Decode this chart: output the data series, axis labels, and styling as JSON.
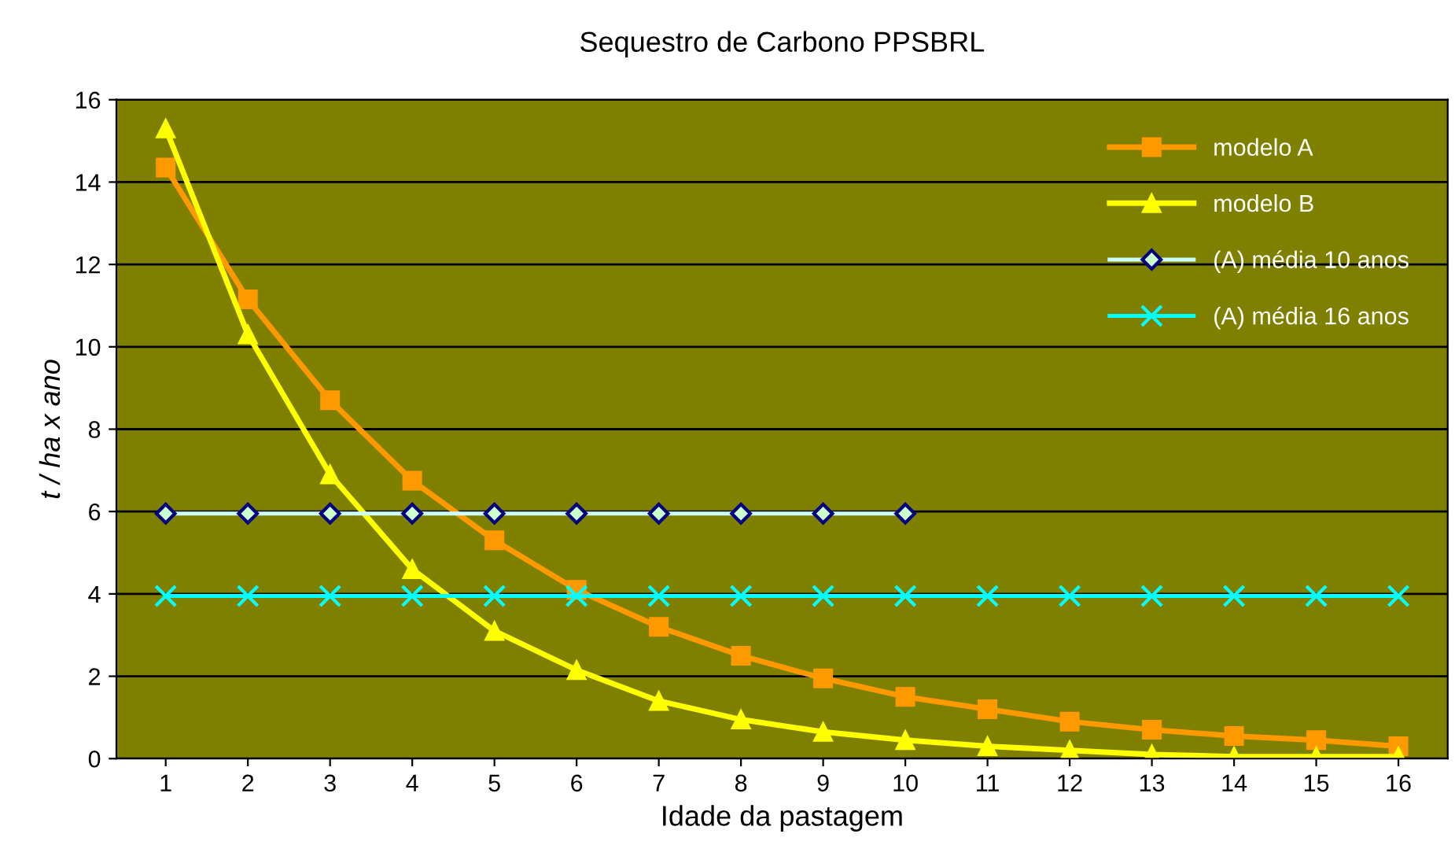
{
  "chart_data": {
    "type": "line",
    "title": "Sequestro de Carbono PPSBRL",
    "xlabel": "Idade da pastagem",
    "ylabel": "t / ha x ano",
    "categories": [
      "1",
      "2",
      "3",
      "4",
      "5",
      "6",
      "7",
      "8",
      "9",
      "10",
      "11",
      "12",
      "13",
      "14",
      "15",
      "16"
    ],
    "series": [
      {
        "name": "modelo A",
        "color": "#ff9900",
        "marker": "square",
        "values": [
          14.35,
          11.15,
          8.7,
          6.75,
          5.3,
          4.1,
          3.2,
          2.5,
          1.95,
          1.5,
          1.2,
          0.9,
          0.7,
          0.55,
          0.45,
          0.3
        ]
      },
      {
        "name": "modelo B",
        "color": "#ffff00",
        "marker": "triangle",
        "values": [
          15.3,
          10.3,
          6.9,
          4.6,
          3.1,
          2.15,
          1.4,
          0.95,
          0.65,
          0.45,
          0.3,
          0.2,
          0.1,
          0.05,
          0.05,
          0.05
        ]
      },
      {
        "name": "(A) média 10 anos",
        "color": "#ccffff",
        "marker": "diamond",
        "values": [
          5.95,
          5.95,
          5.95,
          5.95,
          5.95,
          5.95,
          5.95,
          5.95,
          5.95,
          5.95,
          null,
          null,
          null,
          null,
          null,
          null
        ]
      },
      {
        "name": "(A) média 16 anos",
        "color": "#00ffff",
        "marker": "cross",
        "values": [
          3.95,
          3.95,
          3.95,
          3.95,
          3.95,
          3.95,
          3.95,
          3.95,
          3.95,
          3.95,
          3.95,
          3.95,
          3.95,
          3.95,
          3.95,
          3.95
        ]
      }
    ],
    "ylim": [
      0,
      16
    ],
    "yticks": [
      0,
      2,
      4,
      6,
      8,
      10,
      12,
      14,
      16
    ],
    "grid": "y",
    "legend": "top right"
  }
}
